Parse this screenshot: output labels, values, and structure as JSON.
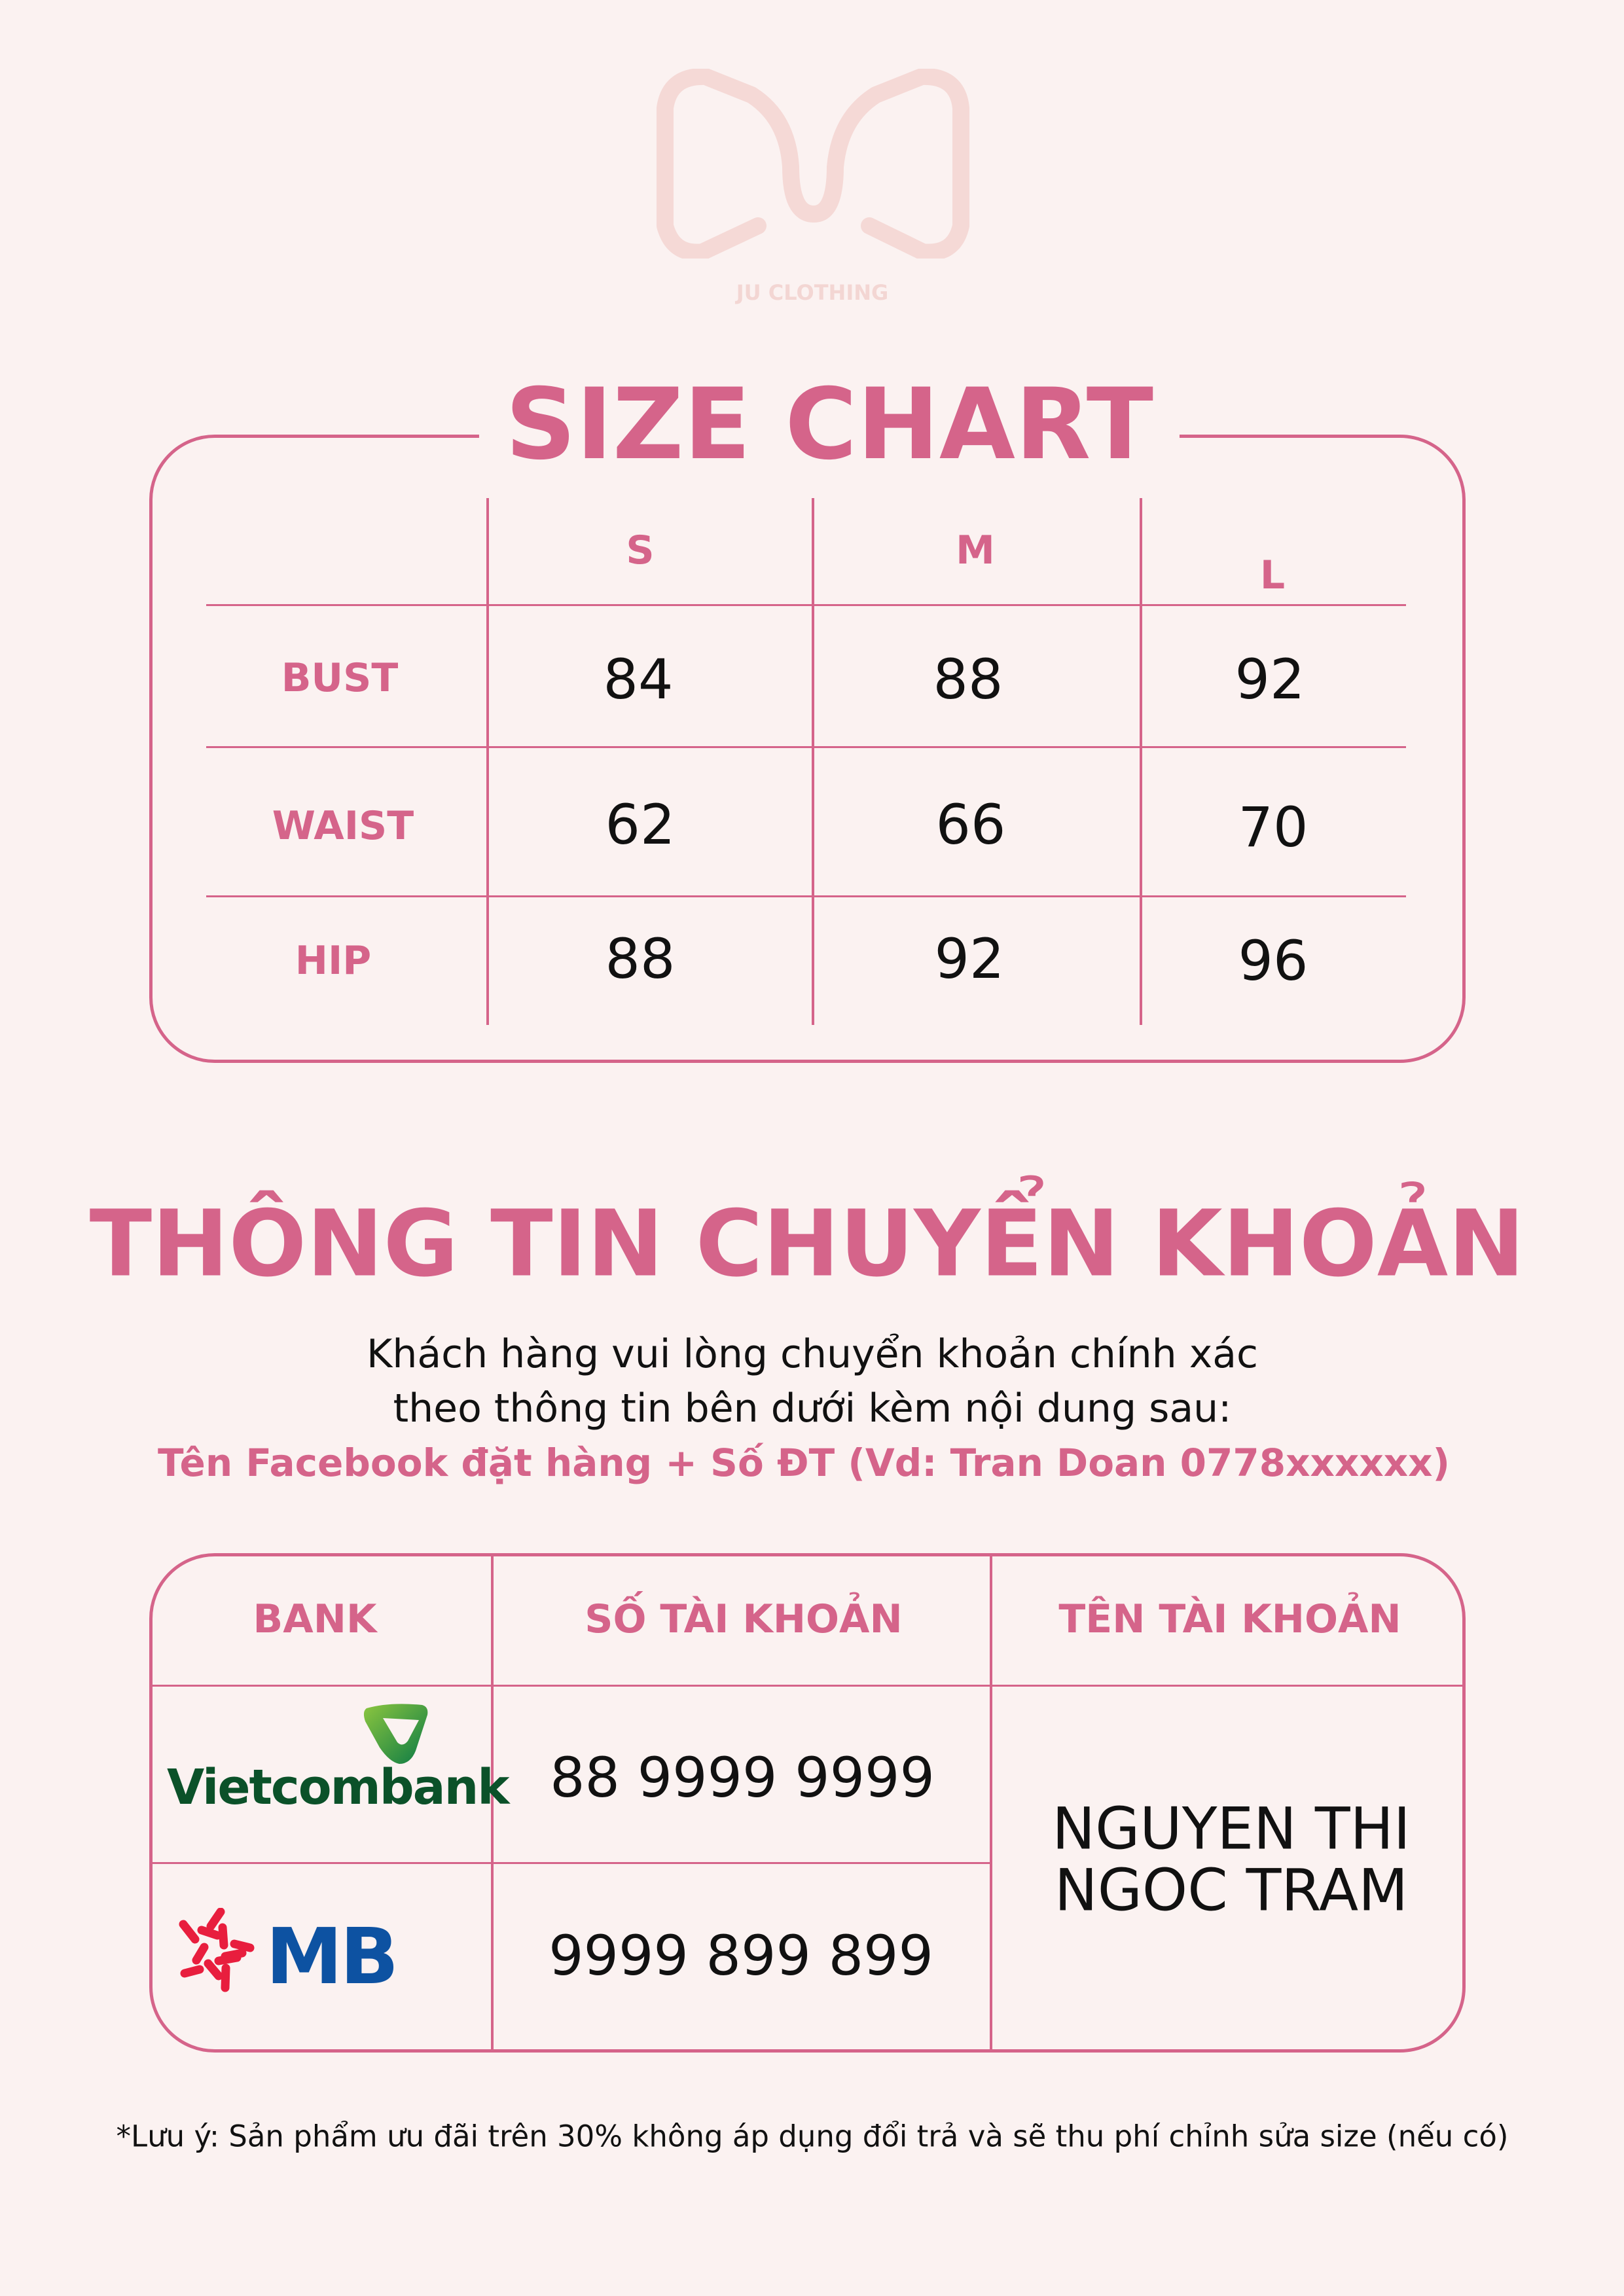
{
  "brand": {
    "name": "JU CLOTHING"
  },
  "size_chart": {
    "title": "SIZE CHART",
    "sizes": [
      "S",
      "M",
      "L"
    ],
    "rows": [
      {
        "label": "BUST",
        "values": [
          "84",
          "88",
          "92"
        ]
      },
      {
        "label": "WAIST",
        "values": [
          "62",
          "66",
          "70"
        ]
      },
      {
        "label": "HIP",
        "values": [
          "88",
          "92",
          "96"
        ]
      }
    ]
  },
  "transfer": {
    "title": "THÔNG TIN CHUYỂN KHOẢN",
    "line1": "Khách hàng vui lòng chuyển khoản chính xác",
    "line2": "theo thông tin bên dưới kèm nội dung sau:",
    "line3": "Tên Facebook đặt hàng + Số ĐT (Vd: Tran Doan 0778xxxxxx)"
  },
  "bank_table": {
    "headers": [
      "BANK",
      "SỐ TÀI KHOẢN",
      "TÊN TÀI KHOẢN"
    ],
    "banks": [
      {
        "name": "Vietcombank",
        "account": "88 9999 9999"
      },
      {
        "name": "MB",
        "account": "9999 899 899"
      }
    ],
    "account_name_line1": "NGUYEN THI",
    "account_name_line2": "NGOC TRAM"
  },
  "footnote": "*Lưu ý: Sản phẩm ưu đãi trên 30% không áp dụng đổi trả và sẽ thu phí chỉnh sửa size (nếu có)",
  "colors": {
    "accent": "#d5648a",
    "background": "#fbf2f1",
    "logo": "#f5d9d6",
    "vcb_green": "#0b5129",
    "mb_blue": "#0d52a2",
    "mb_red": "#e81e3e"
  }
}
